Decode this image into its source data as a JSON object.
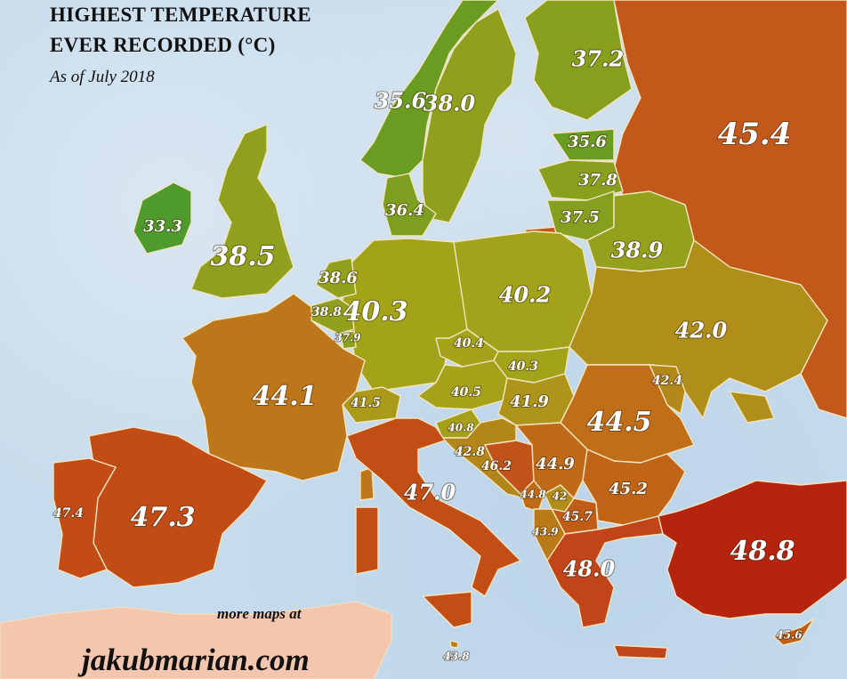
{
  "title": {
    "line1": "HIGHEST TEMPERATURE",
    "line2": "EVER RECORDED (°C)",
    "subtitle": "As of July 2018"
  },
  "footer": {
    "more": "more maps at",
    "site": "jakubmarian.com"
  },
  "colors": {
    "sea": "#c6dbec",
    "border": "#f3e4bd",
    "africa": "#f4c6ae"
  },
  "regions": [
    {
      "value": "33.3",
      "color": "#4e9a2c"
    },
    {
      "value": "38.5",
      "color": "#8fa01f"
    },
    {
      "value": "35.6",
      "color": "#6b9c22"
    },
    {
      "value": "38.0",
      "color": "#8ea01d"
    },
    {
      "value": "37.2",
      "color": "#86a01e"
    },
    {
      "value": "45.4",
      "color": "#c2591a"
    },
    {
      "value": "35.6",
      "color": "#6b9c22"
    },
    {
      "value": "37.8",
      "color": "#88a01e"
    },
    {
      "value": "37.5",
      "color": "#85a01e"
    },
    {
      "value": "38.9",
      "color": "#93a11d"
    },
    {
      "value": "36.4",
      "color": "#7d9e1f"
    },
    {
      "value": "40.3",
      "color": "#a3a31a"
    },
    {
      "value": "40.2",
      "color": "#a2a31a"
    },
    {
      "value": "38.6",
      "color": "#90a11d"
    },
    {
      "value": "38.8",
      "color": "#92a11d"
    },
    {
      "value": "37.9",
      "color": "#8aa01e"
    },
    {
      "value": "42.0",
      "color": "#b08e1a"
    },
    {
      "value": "44.1",
      "color": "#bd7619"
    },
    {
      "value": "40.4",
      "color": "#a4a31a"
    },
    {
      "value": "40.3",
      "color": "#a3a31a"
    },
    {
      "value": "40.5",
      "color": "#a5a21a"
    },
    {
      "value": "41.9",
      "color": "#ac951a"
    },
    {
      "value": "41.5",
      "color": "#aa9a1a"
    },
    {
      "value": "42.4",
      "color": "#b2881a"
    },
    {
      "value": "44.5",
      "color": "#c06e18"
    },
    {
      "value": "40.8",
      "color": "#a69f1a"
    },
    {
      "value": "42.8",
      "color": "#b38619"
    },
    {
      "value": "46.2",
      "color": "#c1521a"
    },
    {
      "value": "44.9",
      "color": "#bf6a18"
    },
    {
      "value": "44.8",
      "color": "#bf6b18"
    },
    {
      "value": "42",
      "color": "#b18d1a"
    },
    {
      "value": "45.7",
      "color": "#c05c18"
    },
    {
      "value": "43.9",
      "color": "#ba7a18"
    },
    {
      "value": "45.2",
      "color": "#c06418"
    },
    {
      "value": "48.0",
      "color": "#c2451a"
    },
    {
      "value": "48.8",
      "color": "#b5240f"
    },
    {
      "value": "47.0",
      "color": "#c24e15"
    },
    {
      "value": "47.3",
      "color": "#c24c16"
    },
    {
      "value": "47.4",
      "color": "#c24b16"
    },
    {
      "value": "45.6",
      "color": "#c05e18"
    },
    {
      "value": "43.8",
      "color": "#ba7b18"
    }
  ]
}
